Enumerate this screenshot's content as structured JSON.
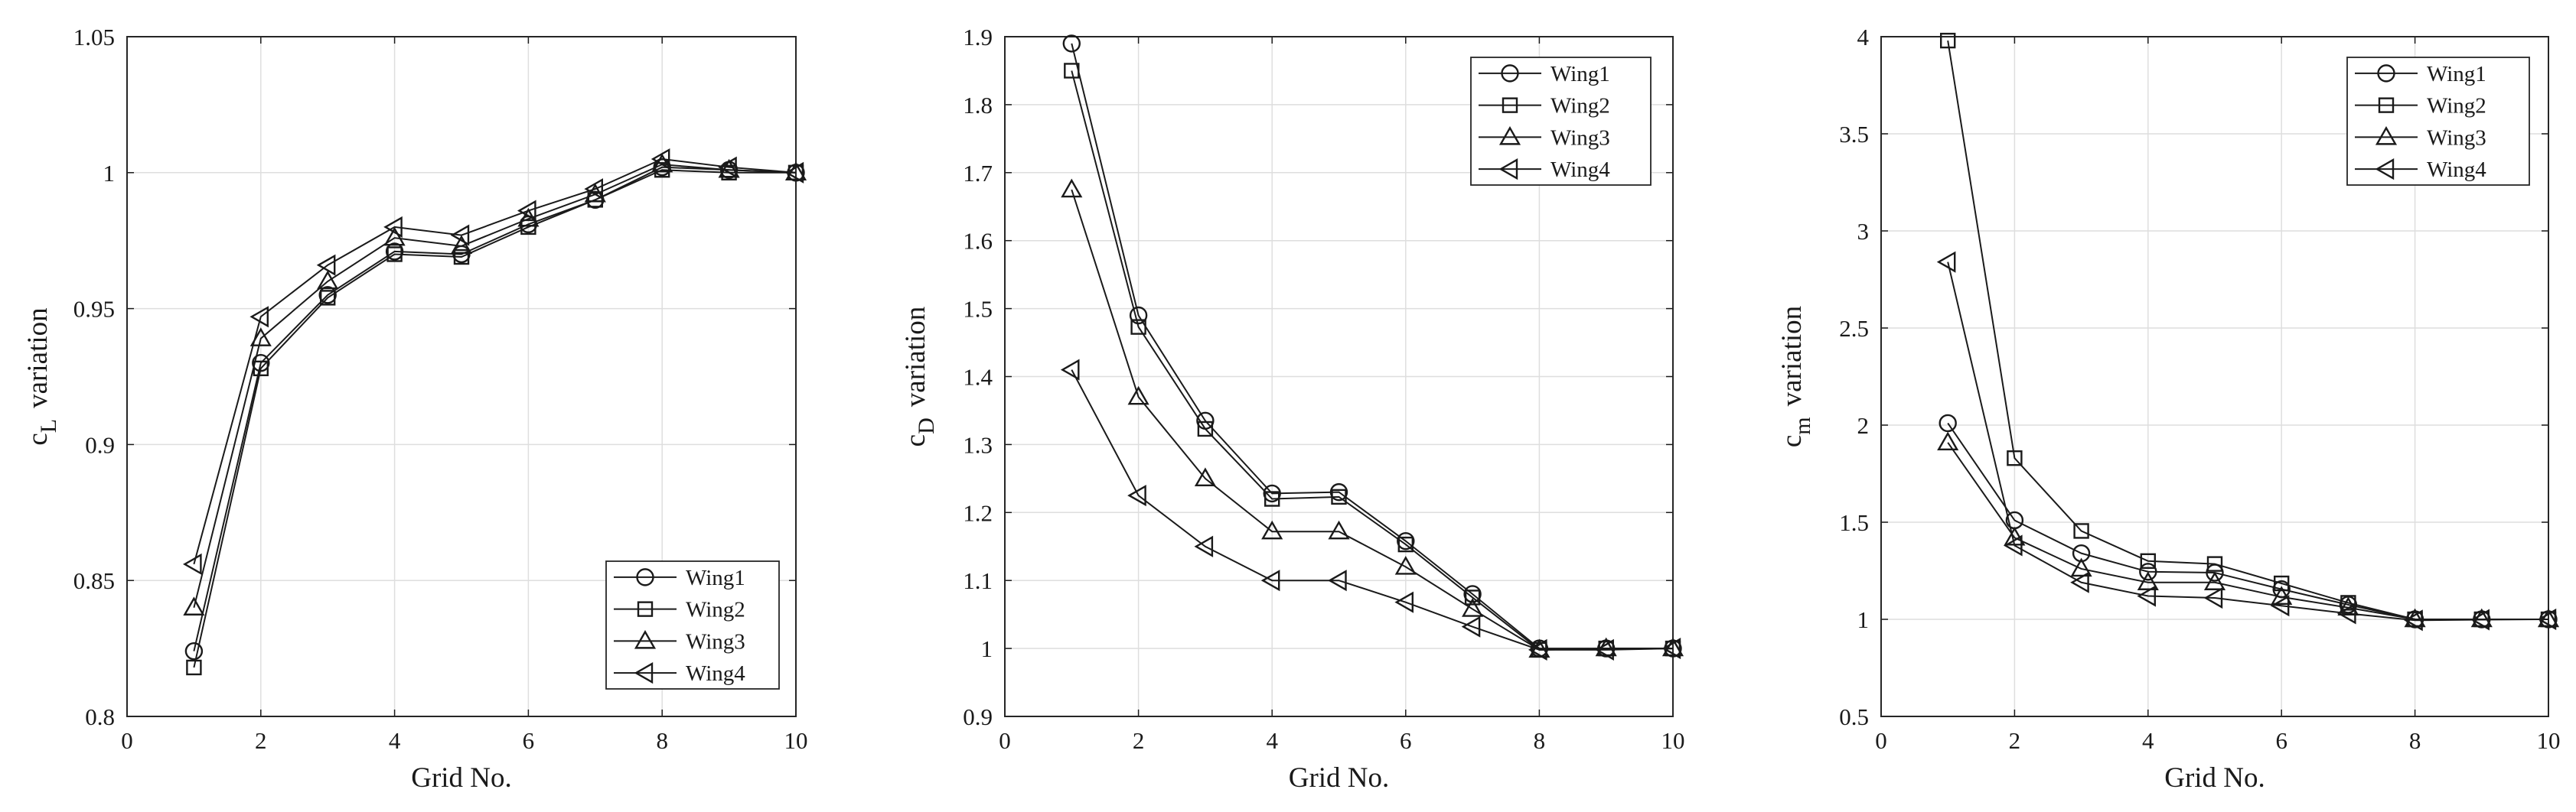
{
  "chart_data": [
    {
      "type": "line",
      "xlabel": "Grid No.",
      "ylabel": {
        "symbol": "c",
        "subscript": "L",
        "suffix": "variation"
      },
      "xlim": [
        0,
        10
      ],
      "ylim": [
        0.8,
        1.05
      ],
      "xticks": [
        "0",
        "2",
        "4",
        "6",
        "8",
        "10"
      ],
      "xtick_values": [
        0,
        2,
        4,
        6,
        8,
        10
      ],
      "yticks": [
        "0.8",
        "0.85",
        "0.9",
        "0.95",
        "1",
        "1.05"
      ],
      "ytick_values": [
        0.8,
        0.85,
        0.9,
        0.95,
        1.0,
        1.05
      ],
      "grid": true,
      "legend_location": "bottom-right",
      "x": [
        1,
        2,
        3,
        4,
        5,
        6,
        7,
        8,
        9,
        10
      ],
      "series": [
        {
          "name": "Wing1",
          "marker": "circle",
          "values": [
            0.824,
            0.93,
            0.955,
            0.971,
            0.97,
            0.981,
            0.99,
            1.002,
            1.001,
            1.0
          ]
        },
        {
          "name": "Wing2",
          "marker": "square",
          "values": [
            0.818,
            0.928,
            0.954,
            0.97,
            0.969,
            0.98,
            0.99,
            1.001,
            1.0,
            1.0
          ]
        },
        {
          "name": "Wing3",
          "marker": "triangle-up",
          "values": [
            0.84,
            0.939,
            0.96,
            0.976,
            0.973,
            0.983,
            0.992,
            1.003,
            1.001,
            1.0
          ]
        },
        {
          "name": "Wing4",
          "marker": "triangle-left",
          "values": [
            0.856,
            0.947,
            0.966,
            0.98,
            0.977,
            0.986,
            0.994,
            1.005,
            1.002,
            1.0
          ]
        }
      ]
    },
    {
      "type": "line",
      "xlabel": "Grid No.",
      "ylabel": {
        "symbol": "c",
        "subscript": "D",
        "suffix": "variation"
      },
      "xlim": [
        0,
        10
      ],
      "ylim": [
        0.9,
        1.9
      ],
      "xticks": [
        "0",
        "2",
        "4",
        "6",
        "8",
        "10"
      ],
      "xtick_values": [
        0,
        2,
        4,
        6,
        8,
        10
      ],
      "yticks": [
        "0.9",
        "1",
        "1.1",
        "1.2",
        "1.3",
        "1.4",
        "1.5",
        "1.6",
        "1.7",
        "1.8",
        "1.9"
      ],
      "ytick_values": [
        0.9,
        1.0,
        1.1,
        1.2,
        1.3,
        1.4,
        1.5,
        1.6,
        1.7,
        1.8,
        1.9
      ],
      "grid": true,
      "legend_location": "top-right",
      "x": [
        1,
        2,
        3,
        4,
        5,
        6,
        7,
        8,
        9,
        10
      ],
      "series": [
        {
          "name": "Wing1",
          "marker": "circle",
          "values": [
            1.89,
            1.49,
            1.335,
            1.228,
            1.23,
            1.158,
            1.08,
            1.0,
            1.0,
            1.0
          ]
        },
        {
          "name": "Wing2",
          "marker": "square",
          "values": [
            1.85,
            1.473,
            1.323,
            1.22,
            1.223,
            1.153,
            1.075,
            0.998,
            1.0,
            1.0
          ]
        },
        {
          "name": "Wing3",
          "marker": "triangle-up",
          "values": [
            1.675,
            1.37,
            1.25,
            1.172,
            1.172,
            1.12,
            1.058,
            0.998,
            1.0,
            1.0
          ]
        },
        {
          "name": "Wing4",
          "marker": "triangle-left",
          "values": [
            1.41,
            1.225,
            1.15,
            1.1,
            1.1,
            1.068,
            1.032,
            0.998,
            0.998,
            1.0
          ]
        }
      ]
    },
    {
      "type": "line",
      "xlabel": "Grid No.",
      "ylabel": {
        "symbol": "c",
        "subscript": "m",
        "suffix": "variation"
      },
      "xlim": [
        0,
        10
      ],
      "ylim": [
        0.5,
        4
      ],
      "xticks": [
        "0",
        "2",
        "4",
        "6",
        "8",
        "10"
      ],
      "xtick_values": [
        0,
        2,
        4,
        6,
        8,
        10
      ],
      "yticks": [
        "0.5",
        "1",
        "1.5",
        "2",
        "2.5",
        "3",
        "3.5",
        "4"
      ],
      "ytick_values": [
        0.5,
        1.0,
        1.5,
        2.0,
        2.5,
        3.0,
        3.5,
        4.0
      ],
      "grid": true,
      "legend_location": "top-right",
      "x": [
        1,
        2,
        3,
        4,
        5,
        6,
        7,
        8,
        9,
        10
      ],
      "series": [
        {
          "name": "Wing1",
          "marker": "circle",
          "values": [
            2.01,
            1.51,
            1.34,
            1.245,
            1.24,
            1.155,
            1.075,
            1.0,
            1.0,
            1.0
          ]
        },
        {
          "name": "Wing2",
          "marker": "square",
          "values": [
            3.98,
            1.83,
            1.455,
            1.3,
            1.285,
            1.185,
            1.085,
            1.0,
            1.0,
            1.0
          ]
        },
        {
          "name": "Wing3",
          "marker": "triangle-up",
          "values": [
            1.91,
            1.42,
            1.26,
            1.19,
            1.19,
            1.115,
            1.06,
            1.0,
            1.0,
            1.0
          ]
        },
        {
          "name": "Wing4",
          "marker": "triangle-left",
          "values": [
            2.84,
            1.38,
            1.19,
            1.12,
            1.11,
            1.07,
            1.03,
            0.995,
            0.998,
            1.0
          ]
        }
      ]
    }
  ]
}
